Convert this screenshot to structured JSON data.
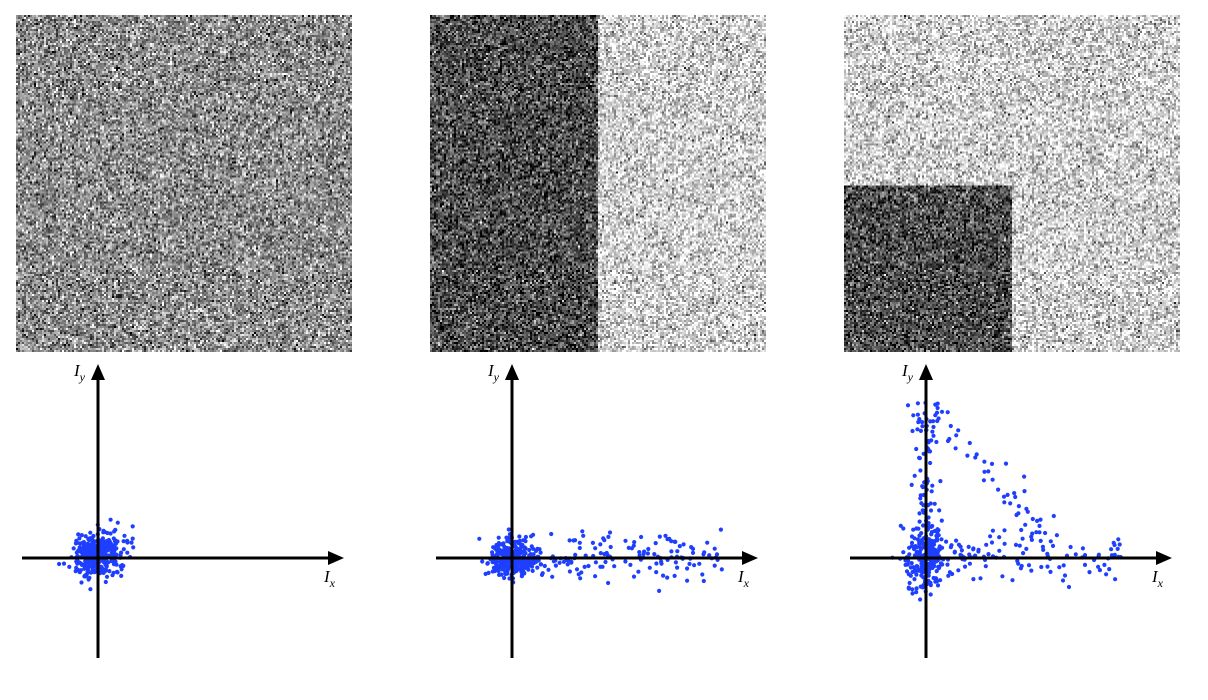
{
  "figure": {
    "axis_labels": {
      "x_main": "I",
      "x_sub": "x",
      "y_main": "I",
      "y_sub": "y"
    },
    "point_color": "#1f3fff",
    "axis_color": "#000000",
    "panels": [
      {
        "id": "flat",
        "image_regions": [
          {
            "region": "full",
            "mean_gray": 0.55
          }
        ],
        "chart_data": {
          "type": "scatter",
          "xlabel": "Ix",
          "ylabel": "Iy",
          "cluster": {
            "center": [
              0,
              0.5
            ],
            "spread_x": [
              -3.5,
              3.5
            ],
            "spread_y": [
              -2.5,
              3.5
            ],
            "count": 380
          }
        }
      },
      {
        "id": "edge",
        "image_regions": [
          {
            "region": "left-half",
            "mean_gray": 0.3
          },
          {
            "region": "right-half",
            "mean_gray": 0.82
          }
        ],
        "chart_data": {
          "type": "scatter",
          "xlabel": "Ix",
          "ylabel": "Iy",
          "cluster": {
            "center": [
              0,
              0
            ],
            "spread_x": [
              -4,
              30
            ],
            "spread_y": [
              -3.5,
              3
            ],
            "count": 420
          }
        }
      },
      {
        "id": "corner",
        "image_regions": [
          {
            "region": "background",
            "mean_gray": 0.82
          },
          {
            "region": "bottom-left-block",
            "mean_gray": 0.3
          }
        ],
        "chart_data": {
          "type": "scatter",
          "xlabel": "Ix",
          "ylabel": "Iy",
          "cluster": {
            "center": [
              0,
              0
            ],
            "spread_x": [
              -4,
              30
            ],
            "spread_y": [
              -4,
              16
            ],
            "count": 460
          }
        }
      }
    ]
  }
}
